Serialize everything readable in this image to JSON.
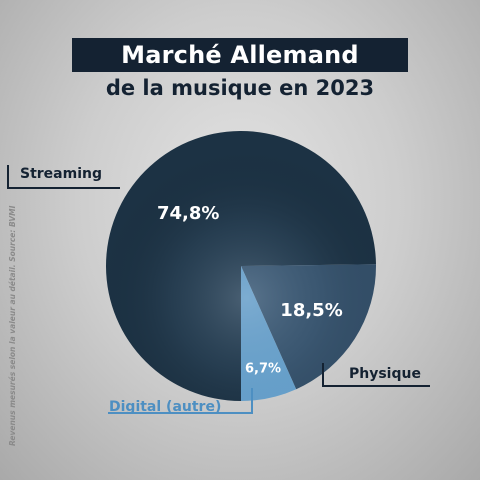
{
  "header": {
    "title": "Marché Allemand",
    "subtitle": "de la musique en 2023"
  },
  "source_note": "Revenus mesurés selon la valeur au détail. Source: BVMI",
  "colors": {
    "background": "#d4d4d4",
    "title_box": "#142232",
    "dark_text": "#142232",
    "streaming": "#1c3244",
    "physique": "#34506a",
    "digital": "#6aa7d4",
    "digital_label": "#4d8fc2"
  },
  "chart_data": {
    "type": "pie",
    "title": "Marché Allemand",
    "subtitle": "de la musique en 2023",
    "slices": [
      {
        "label": "Streaming",
        "value": 74.8,
        "value_label": "74,8%"
      },
      {
        "label": "Physique",
        "value": 18.5,
        "value_label": "18,5%"
      },
      {
        "label": "Digital (autre)",
        "value": 6.7,
        "value_label": "6,7%"
      }
    ],
    "start_angle_deg": 180,
    "direction": "clockwise",
    "legend": "callout-labels"
  }
}
